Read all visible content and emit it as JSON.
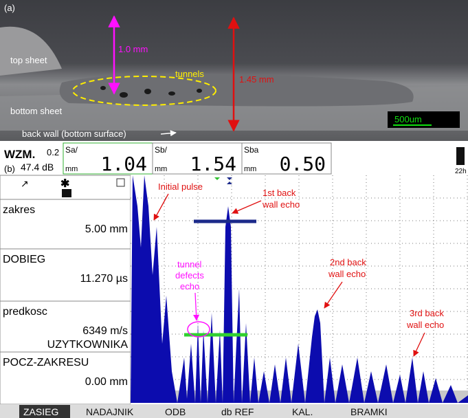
{
  "panel_a": {
    "label": "(a)",
    "thickness_upper": "1.0 mm",
    "thickness_total": "1.45 mm",
    "top_sheet": "top sheet",
    "tunnels": "tunnels",
    "bottom_sheet": "bottom sheet",
    "back_wall": "back wall (bottom surface)",
    "scale_bar": "500um"
  },
  "header": {
    "label": "(b)",
    "mode": "WZM.",
    "gain_step": "0.2",
    "gain": "47.4 dB",
    "readings": [
      {
        "name": "Sa/",
        "unit": "mm",
        "value": "1.04"
      },
      {
        "name": "Sb/",
        "unit": "mm",
        "value": "1.54"
      },
      {
        "name": "Sba",
        "unit": "mm",
        "value": "0.50"
      }
    ],
    "battery": "22h"
  },
  "side_panel": {
    "items": [
      {
        "name": "zakres",
        "value": "5.00 mm"
      },
      {
        "name": "DOBIEG",
        "value": "11.270 µs"
      },
      {
        "name": "predkosc",
        "value": "6349 m/s",
        "note": "UZYTKOWNIKA"
      },
      {
        "name": "POCZ-ZAKRESU",
        "value": "0.00 mm"
      }
    ]
  },
  "annotations": {
    "initial_pulse": [
      "Initial pulse"
    ],
    "first_echo": [
      "1st back",
      "wall echo"
    ],
    "tunnel_echo": [
      "tunnel",
      "defects",
      "echo"
    ],
    "second_echo": [
      "2nd back",
      "wall echo"
    ],
    "third_echo": [
      "3rd back",
      "wall echo"
    ]
  },
  "menu": [
    "ZASIEG",
    "NADAJNIK",
    "ODB",
    "db REF",
    "KAL.",
    "BRAMKI"
  ]
}
